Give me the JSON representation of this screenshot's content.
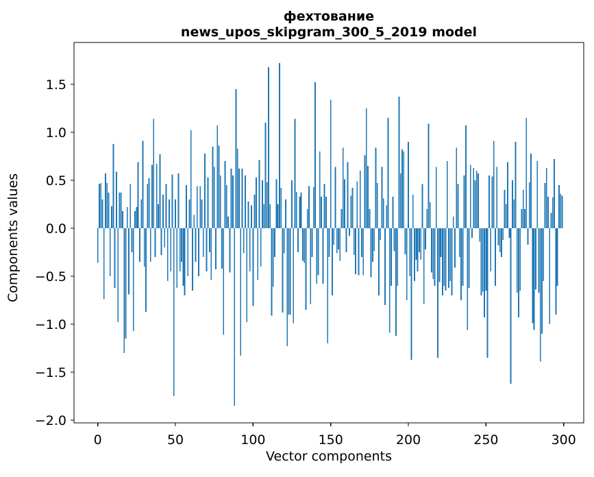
{
  "figure": {
    "title_line1": "фехтование",
    "title_line2": "news_upos_skipgram_300_5_2019 model",
    "xlabel": "Vector components",
    "ylabel": "Components values"
  },
  "chart_data": {
    "type": "bar",
    "title": "фехтование — news_upos_skipgram_300_5_2019 model",
    "xlabel": "Vector components",
    "ylabel": "Components values",
    "bar_color": "#1f77b4",
    "axis_color": "#000000",
    "background_color": "#ffffff",
    "grid": false,
    "legend_position": "none",
    "n_components": 300,
    "xlim": [
      -15.4,
      314.4
    ],
    "ylim": [
      -2.03,
      1.94
    ],
    "xticks": [
      0,
      50,
      100,
      150,
      200,
      250,
      300
    ],
    "yticks": [
      -2.0,
      -1.5,
      -1.0,
      -0.5,
      0.0,
      0.5,
      1.0,
      1.5
    ],
    "values": [
      -0.36,
      0.46,
      0.47,
      0.3,
      -0.74,
      0.57,
      0.47,
      0.37,
      -0.5,
      0.23,
      0.88,
      -0.62,
      0.59,
      -0.98,
      0.37,
      0.37,
      0.18,
      -1.3,
      -1.15,
      0.22,
      -0.69,
      0.46,
      -0.25,
      -1.07,
      0.18,
      0.22,
      0.69,
      -0.35,
      0.3,
      0.91,
      -0.4,
      -0.87,
      0.46,
      0.52,
      -0.35,
      0.66,
      1.14,
      -0.3,
      0.67,
      0.25,
      0.77,
      -0.28,
      0.35,
      -0.2,
      0.46,
      -0.55,
      0.3,
      -0.45,
      0.56,
      -1.75,
      0.3,
      -0.62,
      0.57,
      -0.45,
      -0.35,
      -0.6,
      -0.7,
      0.45,
      -0.5,
      0.3,
      1.02,
      -0.65,
      0.14,
      -0.35,
      0.44,
      -0.5,
      0.44,
      0.3,
      -0.3,
      0.78,
      -0.45,
      0.53,
      -0.25,
      -0.54,
      0.85,
      0.64,
      -0.43,
      1.07,
      0.86,
      0.55,
      -0.42,
      -1.11,
      0.7,
      0.45,
      0.12,
      -0.46,
      0.62,
      0.55,
      -1.85,
      1.45,
      0.83,
      0.62,
      -1.33,
      0.62,
      -0.26,
      0.55,
      -0.98,
      0.28,
      -0.45,
      0.24,
      -0.81,
      0.35,
      0.53,
      -0.54,
      0.71,
      -0.4,
      0.5,
      0.25,
      1.1,
      0.48,
      1.68,
      0.25,
      -0.91,
      -0.61,
      -0.3,
      0.51,
      0.25,
      1.72,
      0.42,
      -0.88,
      -0.26,
      0.3,
      -1.23,
      -0.9,
      -0.9,
      0.5,
      -0.99,
      1.14,
      0.38,
      -0.25,
      0.33,
      0.37,
      -0.34,
      -0.36,
      -0.85,
      0.2,
      0.44,
      -0.79,
      -0.3,
      0.43,
      1.52,
      -0.58,
      -0.49,
      0.8,
      0.33,
      -0.58,
      0.46,
      0.33,
      -1.2,
      -0.3,
      1.34,
      -0.7,
      -0.17,
      0.64,
      -0.26,
      -0.22,
      -0.34,
      0.2,
      0.84,
      0.51,
      -0.25,
      0.69,
      -0.08,
      0.34,
      0.42,
      -0.28,
      -0.48,
      0.49,
      -0.49,
      0.6,
      -0.3,
      -0.49,
      0.76,
      1.25,
      0.65,
      0.2,
      -0.51,
      -0.35,
      -0.24,
      0.84,
      0.47,
      -0.7,
      -0.12,
      0.64,
      0.31,
      -0.8,
      0.24,
      1.15,
      -1.09,
      -0.6,
      0.33,
      -0.24,
      -1.12,
      -0.6,
      1.37,
      0.57,
      0.82,
      0.8,
      -0.27,
      -0.75,
      0.9,
      -0.5,
      -1.37,
      0.35,
      -0.55,
      -0.33,
      -0.45,
      -0.25,
      -0.33,
      0.46,
      -0.79,
      -0.22,
      0.2,
      1.09,
      0.27,
      -0.46,
      -0.53,
      -0.6,
      0.64,
      -1.35,
      -0.56,
      -0.3,
      -0.7,
      -0.6,
      -0.65,
      0.7,
      -0.62,
      -0.55,
      -0.7,
      0.12,
      -0.41,
      0.84,
      0.46,
      -0.3,
      -0.75,
      -0.6,
      0.55,
      1.07,
      -1.06,
      -0.62,
      0.66,
      -0.1,
      0.63,
      0.5,
      0.6,
      0.57,
      -0.14,
      -0.7,
      -0.66,
      -0.93,
      -0.65,
      -1.35,
      0.55,
      -0.45,
      0.54,
      0.91,
      -0.6,
      0.64,
      -0.18,
      -0.25,
      -0.3,
      -0.12,
      0.4,
      0.25,
      0.69,
      -0.1,
      -1.62,
      0.5,
      0.3,
      0.9,
      -0.67,
      -0.93,
      -0.65,
      0.2,
      0.4,
      0.2,
      1.15,
      -0.17,
      0.48,
      0.78,
      -0.99,
      -1.06,
      -0.64,
      0.7,
      -0.67,
      -1.39,
      -1.1,
      -0.55,
      0.47,
      0.63,
      0.33,
      -1.0,
      0.16,
      0.32,
      0.72,
      -0.9,
      -0.6,
      0.45,
      0.36,
      0.34
    ]
  }
}
